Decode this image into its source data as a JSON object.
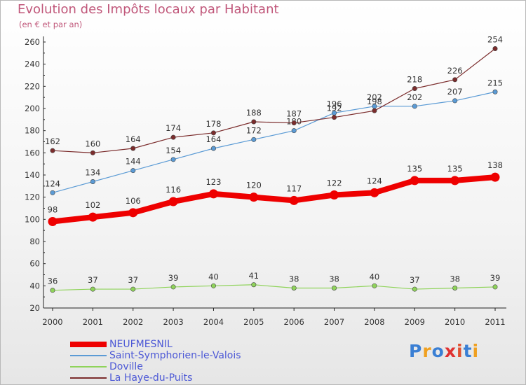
{
  "header": {
    "title": "Evolution des Impôts locaux par Habitant",
    "subtitle": "(en € et par an)"
  },
  "chart_data": {
    "type": "line",
    "title": "Evolution des Impôts locaux par Habitant",
    "subtitle": "(en € et par an)",
    "xlabel": "",
    "ylabel": "",
    "x": [
      "2000",
      "2001",
      "2002",
      "2003",
      "2004",
      "2005",
      "2006",
      "2007",
      "2008",
      "2009",
      "2010",
      "2011"
    ],
    "ylim": [
      20,
      260
    ],
    "yticks": [
      20,
      40,
      60,
      80,
      100,
      120,
      140,
      160,
      180,
      200,
      220,
      240,
      260
    ],
    "grid": false,
    "legend_position": "bottom-left",
    "series": [
      {
        "name": "NEUFMESNIL",
        "color": "#ee0000",
        "values": [
          98,
          102,
          106,
          116,
          123,
          120,
          117,
          122,
          124,
          135,
          135,
          138
        ]
      },
      {
        "name": "Saint-Symphorien-le-Valois",
        "color": "#5b9bd5",
        "values": [
          124,
          134,
          144,
          154,
          164,
          172,
          180,
          196,
          202,
          202,
          207,
          215
        ]
      },
      {
        "name": "Doville",
        "color": "#8fd35a",
        "values": [
          36,
          37,
          37,
          39,
          40,
          41,
          38,
          38,
          40,
          37,
          38,
          39
        ]
      },
      {
        "name": "La Haye-du-Puits",
        "color": "#7b2c2c",
        "values": [
          162,
          160,
          164,
          174,
          178,
          188,
          187,
          192,
          198,
          218,
          226,
          254
        ]
      }
    ]
  },
  "logo": {
    "text": "Proxiti",
    "colors": [
      "#3a7fd4",
      "#f0a020",
      "#3a7fd4",
      "#e03030",
      "#e05030",
      "#3a7fd4",
      "#f0a020"
    ]
  }
}
